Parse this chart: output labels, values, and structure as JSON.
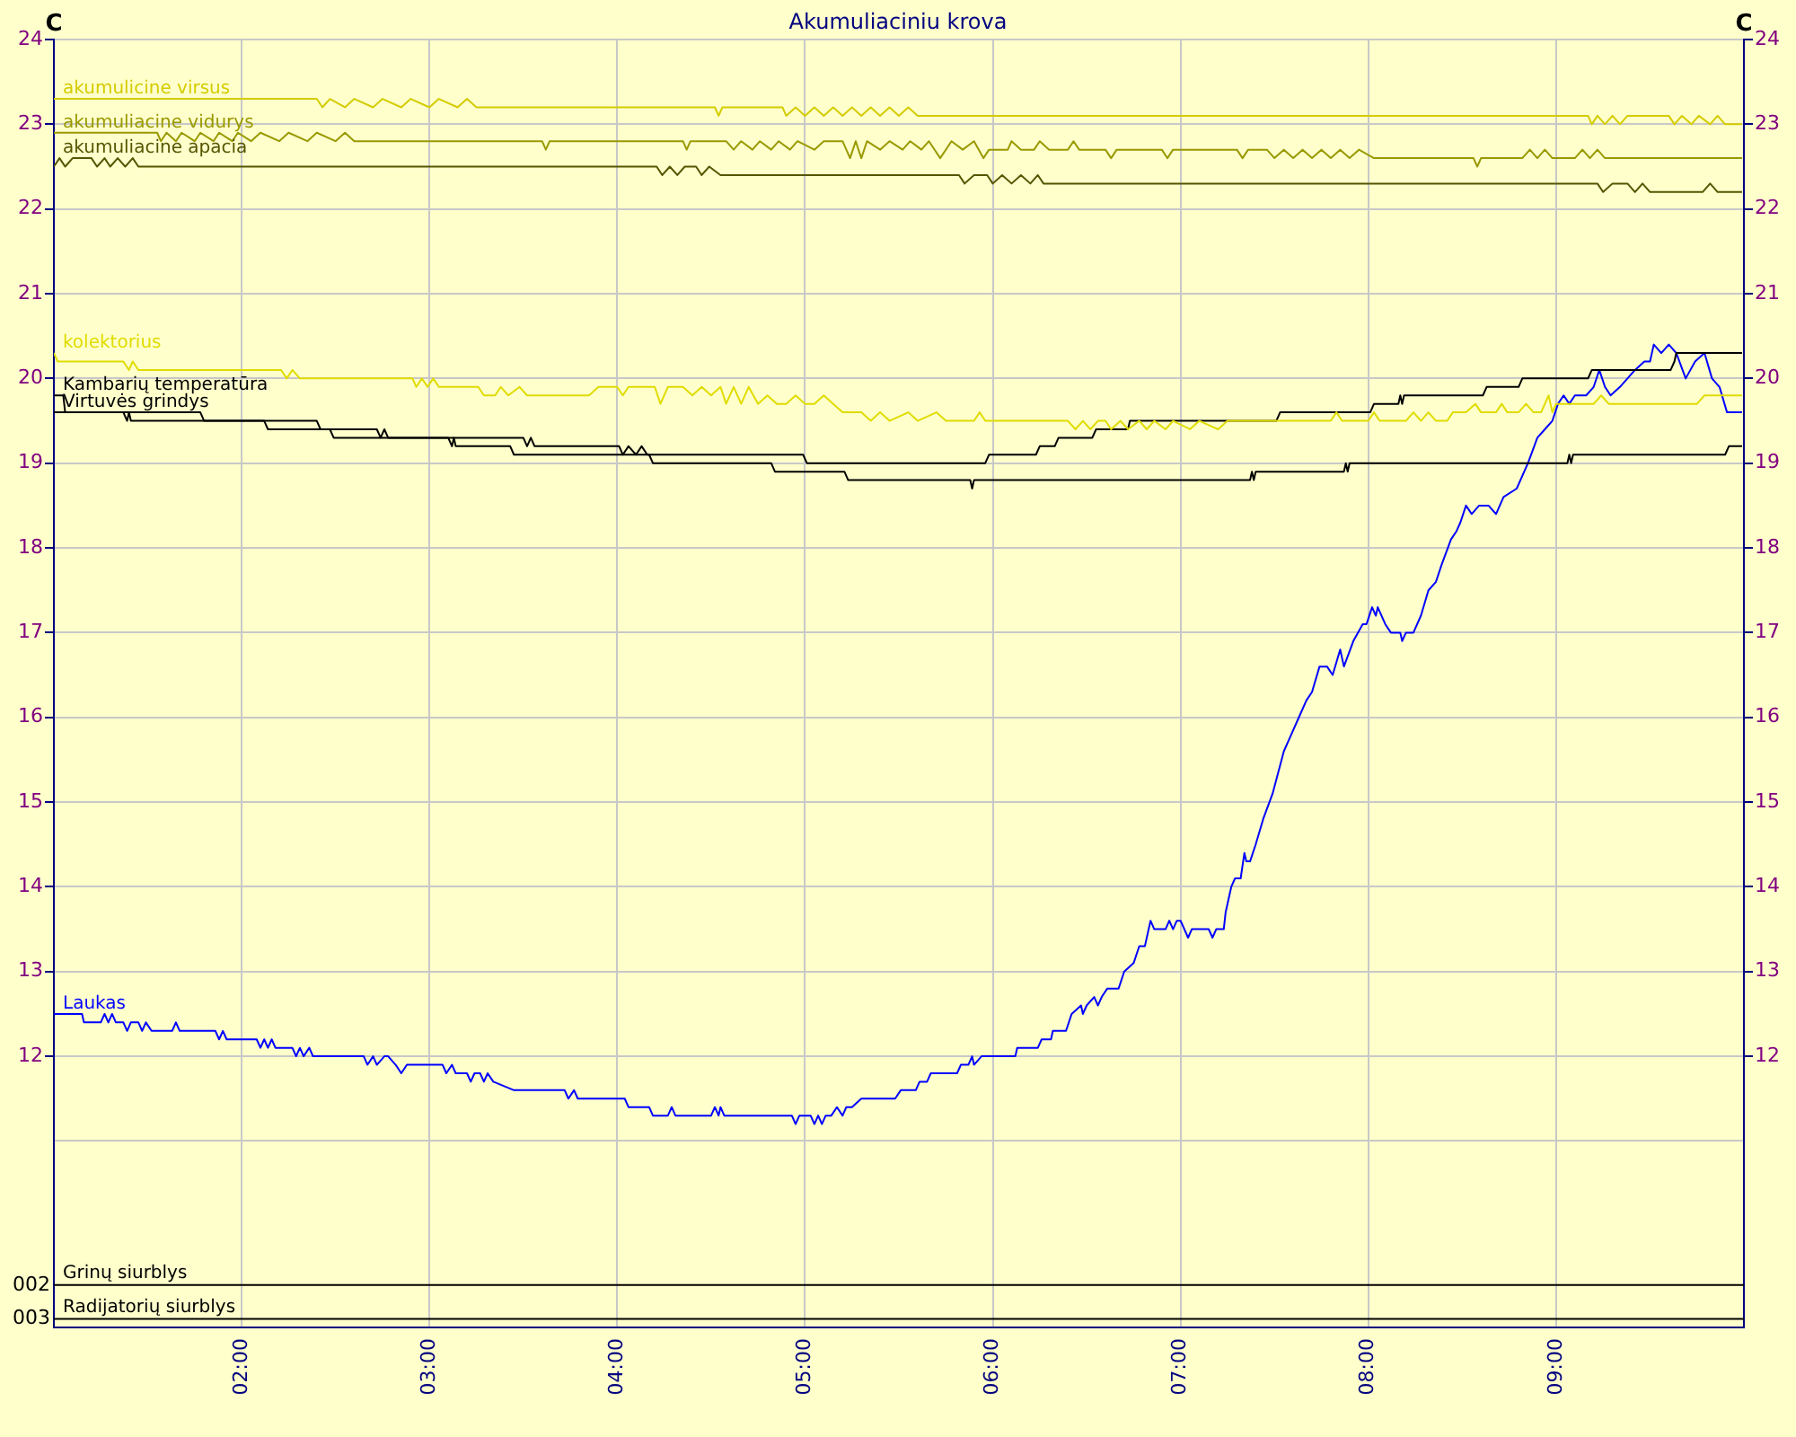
{
  "chart_data": [
    {
      "type": "line",
      "title": "Akumuliaciniu krova",
      "ylabel": "C",
      "y2label": "C",
      "xlim": [
        1,
        10
      ],
      "xticks": [
        {
          "value": 2,
          "label": "02:00"
        },
        {
          "value": 3,
          "label": "03:00"
        },
        {
          "value": 4,
          "label": "04:00"
        },
        {
          "value": 5,
          "label": "05:00"
        },
        {
          "value": 6,
          "label": "06:00"
        },
        {
          "value": 7,
          "label": "07:00"
        },
        {
          "value": 8,
          "label": "08:00"
        },
        {
          "value": 9,
          "label": "09:00"
        }
      ],
      "ylim": [
        8.8,
        24
      ],
      "yticks": [
        {
          "value": 11,
          "label": null
        },
        12,
        13,
        14,
        15,
        16,
        17,
        18,
        19,
        20,
        21,
        22,
        23,
        24
      ],
      "y2lim": [
        8.8,
        24
      ],
      "y2ticks": [
        12,
        13,
        14,
        15,
        16,
        17,
        18,
        19,
        20,
        21,
        22,
        23,
        24
      ],
      "grid": true,
      "marker": "none",
      "line_style": "solid",
      "ref_lines": [
        {
          "axis": "y",
          "value": 9.3,
          "label": "Grinų siurblys",
          "color": "#000000"
        },
        {
          "axis": "y",
          "value": 8.9,
          "label": "Radijatorių siurblys",
          "color": "#000000"
        }
      ],
      "annotations": [
        "002",
        "003"
      ],
      "series": [
        {
          "name": "akumulicine virsus",
          "color": "#d4cc00",
          "x": [
            1.0,
            2.4,
            2.43,
            2.47,
            2.55,
            2.6,
            2.7,
            2.75,
            2.85,
            2.9,
            3.0,
            3.05,
            3.15,
            3.2,
            3.25,
            4.52,
            4.54,
            4.56,
            4.88,
            4.9,
            4.95,
            5.0,
            5.05,
            5.1,
            5.15,
            5.2,
            5.25,
            5.3,
            5.35,
            5.4,
            5.45,
            5.5,
            5.55,
            5.6,
            5.63,
            9.17,
            9.19,
            9.22,
            9.26,
            9.3,
            9.34,
            9.38,
            9.6,
            9.63,
            9.67,
            9.72,
            9.76,
            9.82,
            9.86,
            9.9,
            9.99
          ],
          "values": [
            23.3,
            23.3,
            23.2,
            23.3,
            23.2,
            23.3,
            23.2,
            23.3,
            23.2,
            23.3,
            23.2,
            23.3,
            23.2,
            23.3,
            23.2,
            23.2,
            23.1,
            23.2,
            23.2,
            23.1,
            23.2,
            23.1,
            23.2,
            23.1,
            23.2,
            23.1,
            23.2,
            23.1,
            23.2,
            23.1,
            23.2,
            23.1,
            23.2,
            23.1,
            23.1,
            23.1,
            23.0,
            23.1,
            23.0,
            23.1,
            23.0,
            23.1,
            23.1,
            23.0,
            23.1,
            23.0,
            23.1,
            23.0,
            23.1,
            23.0,
            23.0
          ]
        },
        {
          "name": "akumuliacine vidurys",
          "color": "#999900",
          "x": [
            1.0,
            1.55,
            1.57,
            1.6,
            1.65,
            1.68,
            1.75,
            1.78,
            1.85,
            1.88,
            1.95,
            1.98,
            2.05,
            2.1,
            2.2,
            2.25,
            2.35,
            2.4,
            2.5,
            2.55,
            2.6,
            3.6,
            3.62,
            3.64,
            4.35,
            4.37,
            4.39,
            4.58,
            4.62,
            4.66,
            4.72,
            4.76,
            4.82,
            4.86,
            4.92,
            4.96,
            5.05,
            5.1,
            5.2,
            5.24,
            5.27,
            5.3,
            5.33,
            5.4,
            5.45,
            5.52,
            5.56,
            5.62,
            5.66,
            5.72,
            5.78,
            5.84,
            5.9,
            5.95,
            5.98,
            6.08,
            6.1,
            6.15,
            6.22,
            6.25,
            6.3,
            6.4,
            6.43,
            6.46,
            6.6,
            6.63,
            6.66,
            6.9,
            6.93,
            6.96,
            7.3,
            7.33,
            7.36,
            7.46,
            7.5,
            7.55,
            7.6,
            7.65,
            7.7,
            7.75,
            7.8,
            7.85,
            7.9,
            7.95,
            8.03,
            8.56,
            8.58,
            8.6,
            8.82,
            8.86,
            8.9,
            8.94,
            8.98,
            9.1,
            9.14,
            9.18,
            9.22,
            9.26,
            9.99
          ],
          "values": [
            22.9,
            22.9,
            22.8,
            22.9,
            22.8,
            22.9,
            22.8,
            22.9,
            22.8,
            22.9,
            22.8,
            22.9,
            22.8,
            22.9,
            22.8,
            22.9,
            22.8,
            22.9,
            22.8,
            22.9,
            22.8,
            22.8,
            22.7,
            22.8,
            22.8,
            22.7,
            22.8,
            22.8,
            22.7,
            22.8,
            22.7,
            22.8,
            22.7,
            22.8,
            22.7,
            22.8,
            22.7,
            22.8,
            22.8,
            22.6,
            22.8,
            22.6,
            22.8,
            22.7,
            22.8,
            22.7,
            22.8,
            22.7,
            22.8,
            22.6,
            22.8,
            22.7,
            22.8,
            22.6,
            22.7,
            22.7,
            22.8,
            22.7,
            22.7,
            22.8,
            22.7,
            22.7,
            22.8,
            22.7,
            22.7,
            22.6,
            22.7,
            22.7,
            22.6,
            22.7,
            22.7,
            22.6,
            22.7,
            22.7,
            22.6,
            22.7,
            22.6,
            22.7,
            22.6,
            22.7,
            22.6,
            22.7,
            22.6,
            22.7,
            22.6,
            22.6,
            22.5,
            22.6,
            22.6,
            22.7,
            22.6,
            22.7,
            22.6,
            22.6,
            22.7,
            22.6,
            22.7,
            22.6,
            22.6
          ]
        },
        {
          "name": "akumuliacine apacia",
          "color": "#555500",
          "x": [
            1.0,
            1.03,
            1.06,
            1.1,
            1.2,
            1.23,
            1.27,
            1.3,
            1.34,
            1.38,
            1.42,
            1.45,
            4.21,
            4.24,
            4.28,
            4.32,
            4.36,
            4.42,
            4.45,
            4.49,
            4.55,
            5.82,
            5.85,
            5.9,
            5.97,
            6.0,
            6.05,
            6.1,
            6.15,
            6.2,
            6.24,
            6.27,
            9.22,
            9.25,
            9.3,
            9.38,
            9.42,
            9.46,
            9.5,
            9.78,
            9.82,
            9.86,
            9.99
          ],
          "values": [
            22.5,
            22.6,
            22.5,
            22.6,
            22.6,
            22.5,
            22.6,
            22.5,
            22.6,
            22.5,
            22.6,
            22.5,
            22.5,
            22.4,
            22.5,
            22.4,
            22.5,
            22.5,
            22.4,
            22.5,
            22.4,
            22.4,
            22.3,
            22.4,
            22.4,
            22.3,
            22.4,
            22.3,
            22.4,
            22.3,
            22.4,
            22.3,
            22.3,
            22.2,
            22.3,
            22.3,
            22.2,
            22.3,
            22.2,
            22.2,
            22.3,
            22.2,
            22.2
          ]
        },
        {
          "name": "kolektorius",
          "color": "#e0dc00",
          "x": [
            1.0,
            1.02,
            1.37,
            1.4,
            1.42,
            1.45,
            2.21,
            2.24,
            2.27,
            2.31,
            2.91,
            2.93,
            2.96,
            2.99,
            3.02,
            3.05,
            3.26,
            3.29,
            3.35,
            3.38,
            3.42,
            3.48,
            3.52,
            3.85,
            3.9,
            4.0,
            4.03,
            4.06,
            4.2,
            4.23,
            4.27,
            4.35,
            4.4,
            4.45,
            4.5,
            4.55,
            4.58,
            4.62,
            4.66,
            4.7,
            4.75,
            4.8,
            4.85,
            4.9,
            4.95,
            5.0,
            5.05,
            5.1,
            5.15,
            5.2,
            5.3,
            5.35,
            5.4,
            5.45,
            5.55,
            5.6,
            5.7,
            5.75,
            5.9,
            5.93,
            5.96,
            6.4,
            6.44,
            6.48,
            6.52,
            6.56,
            6.6,
            6.63,
            6.68,
            6.72,
            6.78,
            6.82,
            6.86,
            6.92,
            6.96,
            7.05,
            7.1,
            7.2,
            7.25,
            7.8,
            7.83,
            7.86,
            8.0,
            8.03,
            8.06,
            8.2,
            8.24,
            8.28,
            8.32,
            8.36,
            8.42,
            8.45,
            8.52,
            8.57,
            8.6,
            8.68,
            8.71,
            8.74,
            8.8,
            8.84,
            8.88,
            8.92,
            8.96,
            8.98,
            9.0,
            9.2,
            9.24,
            9.28,
            9.75,
            9.79,
            9.99
          ],
          "values": [
            20.3,
            20.2,
            20.2,
            20.1,
            20.2,
            20.1,
            20.1,
            20.0,
            20.1,
            20.0,
            20.0,
            19.9,
            20.0,
            19.9,
            20.0,
            19.9,
            19.9,
            19.8,
            19.8,
            19.9,
            19.8,
            19.9,
            19.8,
            19.8,
            19.9,
            19.9,
            19.8,
            19.9,
            19.9,
            19.7,
            19.9,
            19.9,
            19.8,
            19.9,
            19.8,
            19.9,
            19.7,
            19.9,
            19.7,
            19.9,
            19.7,
            19.8,
            19.7,
            19.7,
            19.8,
            19.7,
            19.7,
            19.8,
            19.7,
            19.6,
            19.6,
            19.5,
            19.6,
            19.5,
            19.6,
            19.5,
            19.6,
            19.5,
            19.5,
            19.6,
            19.5,
            19.5,
            19.4,
            19.5,
            19.4,
            19.5,
            19.5,
            19.4,
            19.5,
            19.4,
            19.5,
            19.4,
            19.5,
            19.4,
            19.5,
            19.4,
            19.5,
            19.4,
            19.5,
            19.5,
            19.6,
            19.5,
            19.5,
            19.6,
            19.5,
            19.5,
            19.6,
            19.5,
            19.6,
            19.5,
            19.5,
            19.6,
            19.6,
            19.7,
            19.6,
            19.6,
            19.7,
            19.6,
            19.6,
            19.7,
            19.6,
            19.6,
            19.8,
            19.6,
            19.7,
            19.7,
            19.8,
            19.7,
            19.7,
            19.8,
            19.8
          ]
        },
        {
          "name": "Kambarių temperatūra",
          "color": "#000000",
          "x": [
            1.0,
            1.05,
            1.06,
            1.78,
            1.8,
            2.4,
            2.42,
            2.72,
            2.74,
            2.76,
            2.78,
            3.5,
            3.52,
            3.54,
            3.56,
            4.01,
            4.03,
            4.06,
            4.1,
            4.13,
            4.16,
            4.99,
            5.01,
            5.96,
            5.98,
            6.23,
            6.25,
            6.33,
            6.35,
            6.53,
            6.55,
            6.72,
            6.73,
            7.51,
            7.53,
            8.01,
            8.03,
            8.16,
            8.17,
            8.18,
            8.19,
            8.61,
            8.63,
            8.8,
            8.82,
            9.17,
            9.19,
            9.61,
            9.63,
            9.64,
            9.99
          ],
          "values": [
            19.8,
            19.8,
            19.6,
            19.6,
            19.5,
            19.5,
            19.4,
            19.4,
            19.3,
            19.4,
            19.3,
            19.3,
            19.2,
            19.3,
            19.2,
            19.2,
            19.1,
            19.2,
            19.1,
            19.2,
            19.1,
            19.1,
            19.0,
            19.0,
            19.1,
            19.1,
            19.2,
            19.2,
            19.3,
            19.3,
            19.4,
            19.4,
            19.5,
            19.5,
            19.6,
            19.6,
            19.7,
            19.7,
            19.8,
            19.7,
            19.8,
            19.8,
            19.9,
            19.9,
            20.0,
            20.0,
            20.1,
            20.1,
            20.2,
            20.3,
            20.3
          ]
        },
        {
          "name": "Virtuvės grindys",
          "color": "#000000",
          "x": [
            1.0,
            1.37,
            1.39,
            1.4,
            1.41,
            2.12,
            2.14,
            2.47,
            2.49,
            3.1,
            3.12,
            3.13,
            3.14,
            3.43,
            3.45,
            4.17,
            4.19,
            4.82,
            4.84,
            5.21,
            5.23,
            5.88,
            5.89,
            5.9,
            7.37,
            7.38,
            7.39,
            7.4,
            7.87,
            7.88,
            7.89,
            7.9,
            9.06,
            9.07,
            9.08,
            9.09,
            9.9,
            9.92,
            9.99
          ],
          "values": [
            19.6,
            19.6,
            19.5,
            19.6,
            19.5,
            19.5,
            19.4,
            19.4,
            19.3,
            19.3,
            19.2,
            19.3,
            19.2,
            19.2,
            19.1,
            19.1,
            19.0,
            19.0,
            18.9,
            18.9,
            18.8,
            18.8,
            18.7,
            18.8,
            18.8,
            18.9,
            18.8,
            18.9,
            18.9,
            19.0,
            18.9,
            19.0,
            19.0,
            19.1,
            19.0,
            19.1,
            19.1,
            19.2,
            19.2
          ]
        },
        {
          "name": "Laukas",
          "color": "#0000ff",
          "x": [
            1.0,
            1.15,
            1.16,
            1.25,
            1.27,
            1.29,
            1.31,
            1.33,
            1.37,
            1.39,
            1.41,
            1.45,
            1.47,
            1.49,
            1.52,
            1.63,
            1.65,
            1.67,
            1.86,
            1.88,
            1.9,
            1.92,
            2.08,
            2.1,
            2.12,
            2.14,
            2.16,
            2.18,
            2.27,
            2.29,
            2.31,
            2.33,
            2.36,
            2.38,
            2.65,
            2.67,
            2.7,
            2.72,
            2.76,
            2.78,
            2.82,
            2.85,
            2.88,
            3.07,
            3.09,
            3.12,
            3.14,
            3.2,
            3.22,
            3.24,
            3.27,
            3.29,
            3.31,
            3.34,
            3.45,
            3.72,
            3.74,
            3.77,
            3.79,
            4.04,
            4.06,
            4.17,
            4.19,
            4.27,
            4.29,
            4.31,
            4.5,
            4.52,
            4.54,
            4.55,
            4.57,
            4.93,
            4.95,
            4.97,
            5.03,
            5.05,
            5.07,
            5.09,
            5.11,
            5.14,
            5.17,
            5.2,
            5.22,
            5.25,
            5.3,
            5.48,
            5.51,
            5.59,
            5.61,
            5.65,
            5.67,
            5.81,
            5.83,
            5.87,
            5.89,
            5.9,
            5.94,
            6.12,
            6.13,
            6.24,
            6.26,
            6.31,
            6.32,
            6.39,
            6.42,
            6.47,
            6.48,
            6.5,
            6.54,
            6.56,
            6.58,
            6.61,
            6.67,
            6.7,
            6.75,
            6.78,
            6.81,
            6.84,
            6.86,
            6.92,
            6.94,
            6.96,
            6.98,
            7.0,
            7.04,
            7.06,
            7.15,
            7.17,
            7.19,
            7.23,
            7.24,
            7.27,
            7.29,
            7.32,
            7.34,
            7.35,
            7.37,
            7.4,
            7.44,
            7.49,
            7.55,
            7.59,
            7.63,
            7.67,
            7.7,
            7.74,
            7.78,
            7.81,
            7.85,
            7.87,
            7.92,
            7.97,
            7.99,
            8.02,
            8.04,
            8.05,
            8.09,
            8.12,
            8.17,
            8.18,
            8.2,
            8.24,
            8.28,
            8.32,
            8.36,
            8.39,
            8.44,
            8.47,
            8.49,
            8.52,
            8.55,
            8.59,
            8.64,
            8.68,
            8.72,
            8.79,
            8.85,
            8.9,
            8.94,
            8.98,
            9.01,
            9.04,
            9.07,
            9.1,
            9.16,
            9.2,
            9.23,
            9.26,
            9.29,
            9.34,
            9.42,
            9.47,
            9.5,
            9.52,
            9.56,
            9.6,
            9.64,
            9.69,
            9.74,
            9.79,
            9.83,
            9.87,
            9.91,
            9.99
          ],
          "values": [
            12.5,
            12.5,
            12.4,
            12.4,
            12.5,
            12.4,
            12.5,
            12.4,
            12.4,
            12.3,
            12.4,
            12.4,
            12.3,
            12.4,
            12.3,
            12.3,
            12.4,
            12.3,
            12.3,
            12.2,
            12.3,
            12.2,
            12.2,
            12.1,
            12.2,
            12.1,
            12.2,
            12.1,
            12.1,
            12.0,
            12.1,
            12.0,
            12.1,
            12.0,
            12.0,
            11.9,
            12.0,
            11.9,
            12.0,
            12.0,
            11.9,
            11.8,
            11.9,
            11.9,
            11.8,
            11.9,
            11.8,
            11.8,
            11.7,
            11.8,
            11.8,
            11.7,
            11.8,
            11.7,
            11.6,
            11.6,
            11.5,
            11.6,
            11.5,
            11.5,
            11.4,
            11.4,
            11.3,
            11.3,
            11.4,
            11.3,
            11.3,
            11.4,
            11.3,
            11.4,
            11.3,
            11.3,
            11.2,
            11.3,
            11.3,
            11.2,
            11.3,
            11.2,
            11.3,
            11.3,
            11.4,
            11.3,
            11.4,
            11.4,
            11.5,
            11.5,
            11.6,
            11.6,
            11.7,
            11.7,
            11.8,
            11.8,
            11.9,
            11.9,
            12.0,
            11.9,
            12.0,
            12.0,
            12.1,
            12.1,
            12.2,
            12.2,
            12.3,
            12.3,
            12.5,
            12.6,
            12.5,
            12.6,
            12.7,
            12.6,
            12.7,
            12.8,
            12.8,
            13.0,
            13.1,
            13.3,
            13.3,
            13.6,
            13.5,
            13.5,
            13.6,
            13.5,
            13.6,
            13.6,
            13.4,
            13.5,
            13.5,
            13.4,
            13.5,
            13.5,
            13.7,
            14.0,
            14.1,
            14.1,
            14.4,
            14.3,
            14.3,
            14.5,
            14.8,
            15.1,
            15.6,
            15.8,
            16.0,
            16.2,
            16.3,
            16.6,
            16.6,
            16.5,
            16.8,
            16.6,
            16.9,
            17.1,
            17.1,
            17.3,
            17.2,
            17.3,
            17.1,
            17.0,
            17.0,
            16.9,
            17.0,
            17.0,
            17.2,
            17.5,
            17.6,
            17.8,
            18.1,
            18.2,
            18.3,
            18.5,
            18.4,
            18.5,
            18.5,
            18.4,
            18.6,
            18.7,
            19.0,
            19.3,
            19.4,
            19.5,
            19.7,
            19.8,
            19.7,
            19.8,
            19.8,
            19.9,
            20.1,
            19.9,
            19.8,
            19.9,
            20.1,
            20.2,
            20.2,
            20.4,
            20.3,
            20.4,
            20.3,
            20.0,
            20.2,
            20.3,
            20.0,
            19.9,
            19.6,
            19.6
          ]
        }
      ]
    }
  ]
}
